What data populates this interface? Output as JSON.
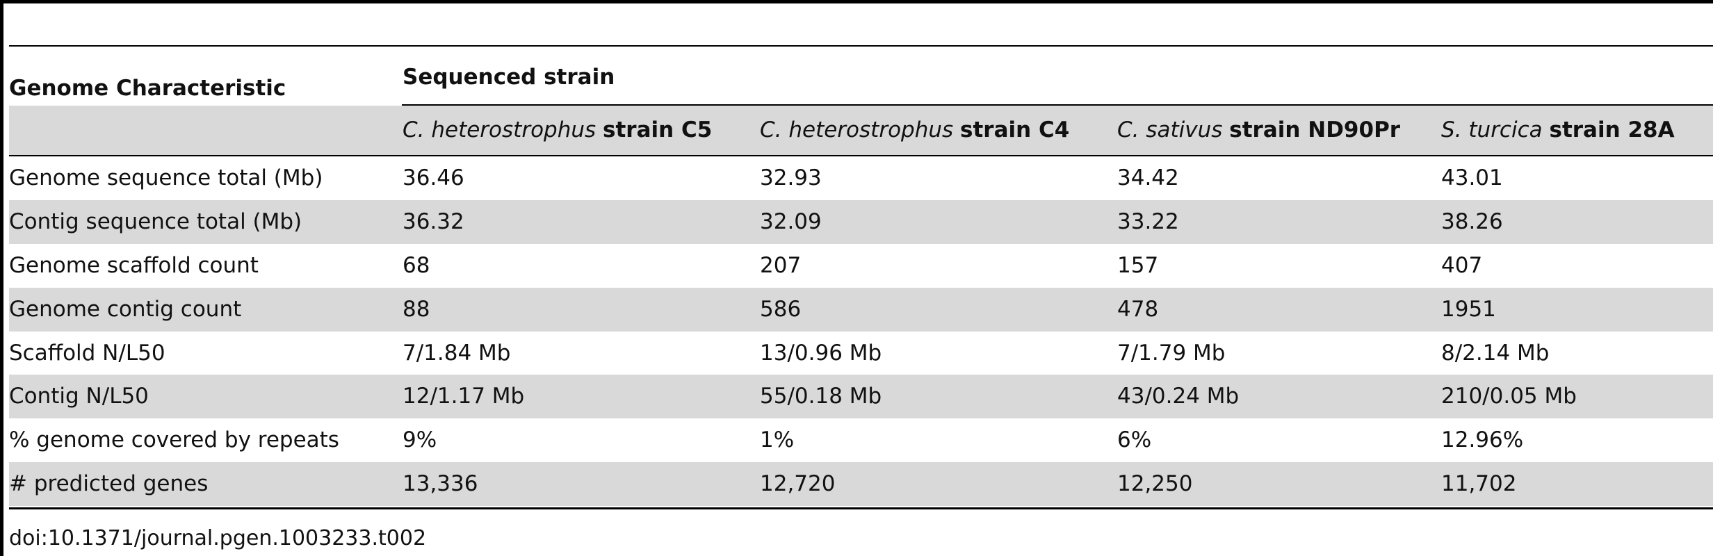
{
  "table": {
    "corner_header": "Genome Characteristic",
    "group_header": "Sequenced strain",
    "columns": [
      {
        "species": "C. heterostrophus",
        "strain": "strain C5"
      },
      {
        "species": "C. heterostrophus",
        "strain": "strain C4"
      },
      {
        "species": "C. sativus",
        "strain": "strain ND90Pr"
      },
      {
        "species": "S. turcica",
        "strain": "strain 28A"
      }
    ],
    "rows": [
      {
        "label": "Genome sequence total (Mb)",
        "values": [
          "36.46",
          "32.93",
          "34.42",
          "43.01"
        ]
      },
      {
        "label": "Contig sequence total (Mb)",
        "values": [
          "36.32",
          "32.09",
          "33.22",
          "38.26"
        ]
      },
      {
        "label": "Genome scaffold count",
        "values": [
          "68",
          "207",
          "157",
          "407"
        ]
      },
      {
        "label": "Genome contig count",
        "values": [
          "88",
          "586",
          "478",
          "1951"
        ]
      },
      {
        "label": "Scaffold N/L50",
        "values": [
          "7/1.84 Mb",
          "13/0.96 Mb",
          "7/1.79 Mb",
          "8/2.14 Mb"
        ]
      },
      {
        "label": "Contig N/L50",
        "values": [
          "12/1.17 Mb",
          "55/0.18 Mb",
          "43/0.24 Mb",
          "210/0.05 Mb"
        ]
      },
      {
        "label": "% genome covered by repeats",
        "values": [
          "9%",
          "1%",
          "6%",
          "12.96%"
        ]
      },
      {
        "label": "# predicted genes",
        "values": [
          "13,336",
          "12,720",
          "12,250",
          "11,702"
        ]
      }
    ]
  },
  "footer": {
    "doi": "doi:10.1371/journal.pgen.1003233.t002"
  },
  "colors": {
    "shade": "#d9d9d9",
    "rule": "#000000",
    "text": "#111111"
  }
}
